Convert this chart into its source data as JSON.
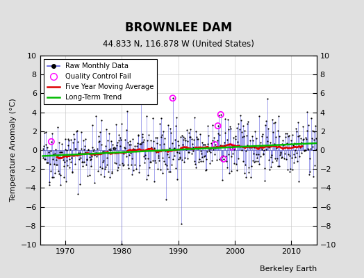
{
  "title": "BROWNLEE DAM",
  "subtitle": "44.833 N, 116.878 W (United States)",
  "ylabel": "Temperature Anomaly (°C)",
  "attribution": "Berkeley Earth",
  "xlim": [
    1965.5,
    2014.5
  ],
  "ylim": [
    -10,
    10
  ],
  "yticks": [
    -10,
    -8,
    -6,
    -4,
    -2,
    0,
    2,
    4,
    6,
    8,
    10
  ],
  "xticks": [
    1970,
    1980,
    1990,
    2000,
    2010
  ],
  "outer_bg": "#e0e0e0",
  "plot_bg": "#ffffff",
  "seed": 42,
  "raw_color": "#5555dd",
  "raw_dot_color": "#000000",
  "ma_color": "#dd0000",
  "trend_color": "#00bb00",
  "qc_color": "#ff00ff",
  "legend_labels": [
    "Raw Monthly Data",
    "Quality Control Fail",
    "Five Year Moving Average",
    "Long-Term Trend"
  ],
  "start_year": 1966.0,
  "end_year": 2014.5,
  "trend_slope": 0.028,
  "trend_intercept": 0.05,
  "noise_std": 1.6
}
